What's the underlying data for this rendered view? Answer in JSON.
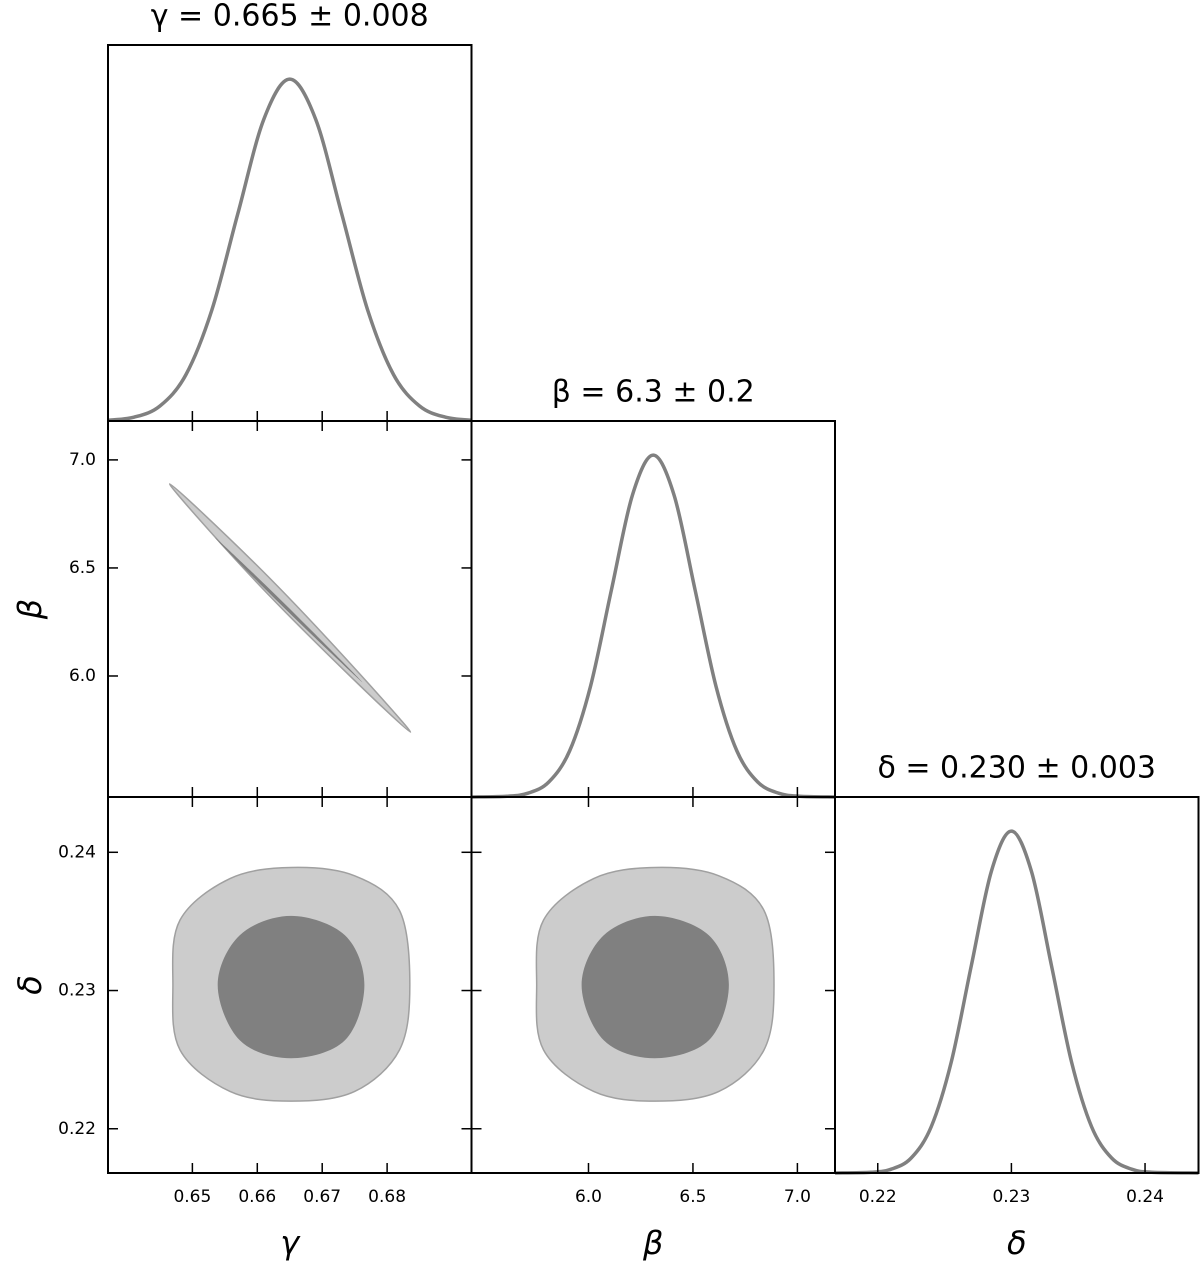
{
  "chart_data": {
    "type": "corner",
    "line_color": "#808080",
    "marginal_ylim": [
      0,
      1.1
    ],
    "parameters": [
      {
        "label": "γ",
        "title": "γ = 0.665 ± 0.008",
        "lim": [
          0.637,
          0.693
        ],
        "ticks": [
          0.65,
          0.66,
          0.67,
          0.68
        ],
        "marginal": {
          "x": [
            0.637,
            0.641,
            0.645,
            0.649,
            0.653,
            0.657,
            0.661,
            0.665,
            0.669,
            0.673,
            0.677,
            0.681,
            0.685,
            0.689,
            0.693
          ],
          "y": [
            0.0022,
            0.0111,
            0.0439,
            0.1353,
            0.3247,
            0.6065,
            0.8825,
            1,
            0.8825,
            0.6065,
            0.3247,
            0.1353,
            0.0439,
            0.0111,
            0.0022
          ]
        }
      },
      {
        "label": "β",
        "title": "β = 6.3 ± 0.2",
        "lim": [
          5.44,
          7.18
        ],
        "ticks": [
          {
            "value": 6,
            "label": "6.0"
          },
          {
            "value": 6.5,
            "label": "6.5"
          },
          {
            "value": 7,
            "label": "7.0"
          }
        ],
        "marginal": {
          "x": [
            5.44,
            5.61,
            5.71,
            5.81,
            5.91,
            6.01,
            6.11,
            6.21,
            6.31,
            6.41,
            6.51,
            6.61,
            6.71,
            6.81,
            6.91,
            7.01,
            7.18
          ],
          "y": [
            0,
            0.0022,
            0.0111,
            0.0439,
            0.1353,
            0.3247,
            0.6065,
            0.8825,
            1,
            0.8825,
            0.6065,
            0.3247,
            0.1353,
            0.0439,
            0.0111,
            0.0022,
            0
          ]
        }
      },
      {
        "label": "δ",
        "title": "δ = 0.230 ± 0.003",
        "lim": [
          0.2168,
          0.244
        ],
        "ticks": [
          0.22,
          0.23,
          0.24
        ],
        "marginal": {
          "x": [
            0.2168,
            0.2195,
            0.221,
            0.2225,
            0.224,
            0.2255,
            0.227,
            0.2285,
            0.23,
            0.2315,
            0.233,
            0.2345,
            0.236,
            0.2375,
            0.239,
            0.2405,
            0.244
          ],
          "y": [
            0,
            0.0022,
            0.0111,
            0.0439,
            0.1353,
            0.3247,
            0.6065,
            0.8825,
            1,
            0.8825,
            0.6065,
            0.3247,
            0.1353,
            0.0439,
            0.0111,
            0.0022,
            0
          ]
        }
      }
    ],
    "pairs": [
      {
        "x_param": 0,
        "y_param": 1,
        "contours": [
          {
            "color": "#cccccc",
            "x": [
              0.6465,
              0.6595,
              0.6719,
              0.6836,
              0.6707,
              0.6582
            ],
            "y": [
              6.889,
              6.525,
              6.137,
              5.74,
              6.105,
              6.488
            ]
          },
          {
            "color": "#808080",
            "x": [
              0.6535,
              0.6612,
              0.6688,
              0.6762,
              0.6685,
              0.6608
            ],
            "y": [
              6.64,
              6.423,
              6.197,
              5.971,
              6.188,
              6.414
            ]
          }
        ]
      },
      {
        "x_param": 0,
        "y_param": 2,
        "contours": [
          {
            "color": "#cccccc",
            "x": [
              0.647,
              0.6481,
              0.6558,
              0.6652,
              0.675,
              0.6819,
              0.6835,
              0.6819,
              0.675,
              0.6652,
              0.6558,
              0.6481
            ],
            "y": [
              0.2304,
              0.2351,
              0.2381,
              0.2389,
              0.2383,
              0.2358,
              0.2304,
              0.2257,
              0.2227,
              0.222,
              0.2227,
              0.2257
            ]
          },
          {
            "color": "#808080",
            "x": [
              0.6539,
              0.6573,
              0.6652,
              0.6735,
              0.6765,
              0.6735,
              0.6652,
              0.6573
            ],
            "y": [
              0.2304,
              0.234,
              0.2354,
              0.234,
              0.2304,
              0.2264,
              0.2251,
              0.2264
            ]
          }
        ]
      },
      {
        "x_param": 1,
        "y_param": 2,
        "contours": [
          {
            "color": "#cccccc",
            "x": [
              5.752,
              5.785,
              6.025,
              6.317,
              6.624,
              6.84,
              6.888,
              6.84,
              6.624,
              6.317,
              6.025,
              5.785
            ],
            "y": [
              0.2304,
              0.2351,
              0.2381,
              0.2389,
              0.2383,
              0.2358,
              0.2304,
              0.2257,
              0.2227,
              0.222,
              0.2227,
              0.2257
            ]
          },
          {
            "color": "#808080",
            "x": [
              5.967,
              6.073,
              6.317,
              6.576,
              6.672,
              6.576,
              6.317,
              6.073
            ],
            "y": [
              0.2304,
              0.234,
              0.2354,
              0.234,
              0.2304,
              0.2264,
              0.2251,
              0.2264
            ]
          }
        ]
      }
    ]
  }
}
